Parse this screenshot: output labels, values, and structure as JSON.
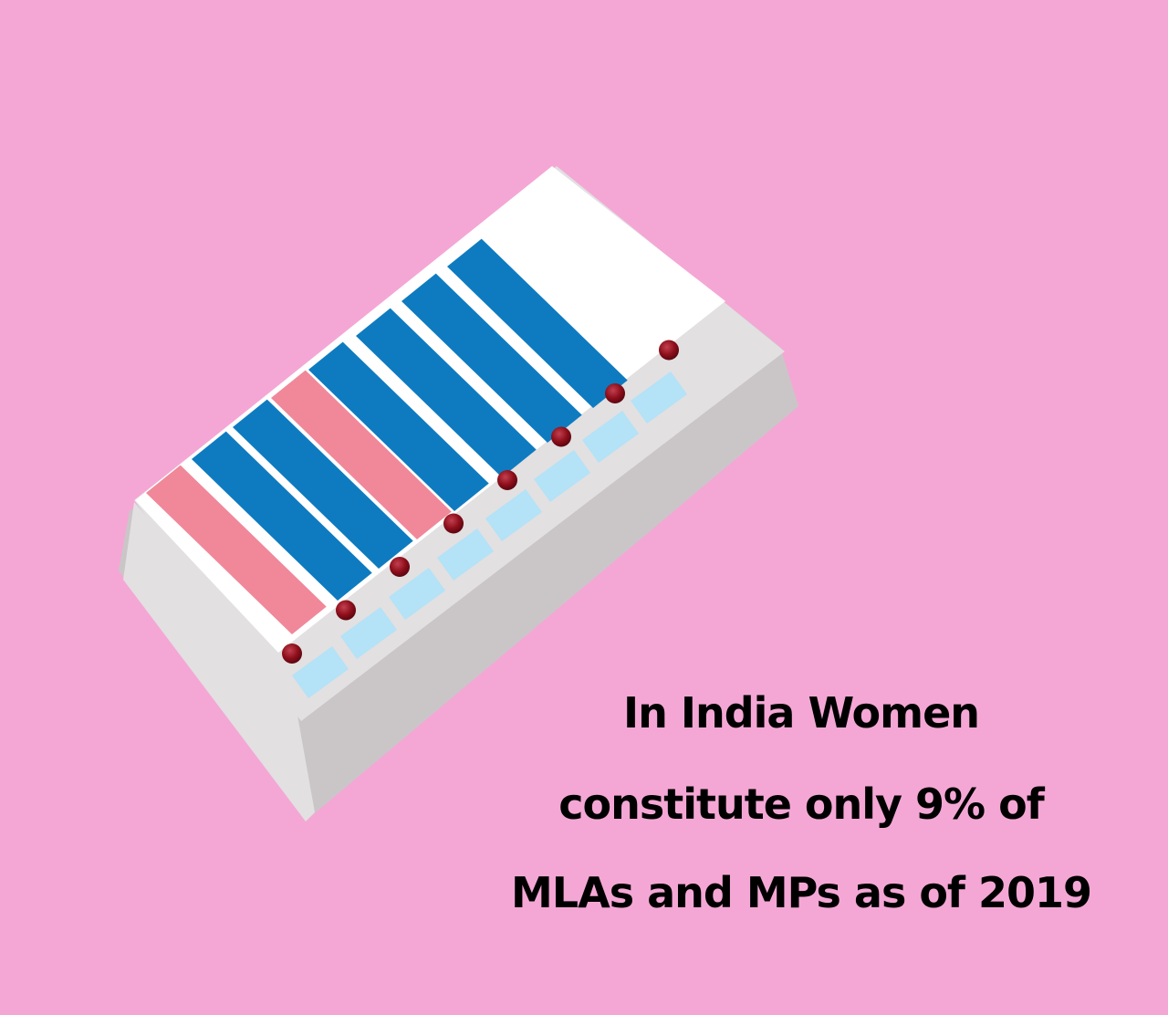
{
  "colors": {
    "background": "#f4a7d5",
    "machine_light": "#e2e0e1",
    "machine_shade": "#cac6c8",
    "panel": "#ffffff",
    "bar_women": "#f08899",
    "bar_men": "#0e7bc0",
    "button": "#b4e2f7",
    "indicator": "#8e0f1b",
    "text": "#000000"
  },
  "candidate_bars": [
    {
      "group": "women"
    },
    {
      "group": "men"
    },
    {
      "group": "men"
    },
    {
      "group": "women"
    },
    {
      "group": "men"
    },
    {
      "group": "men"
    },
    {
      "group": "men"
    },
    {
      "group": "men"
    }
  ],
  "caption": {
    "line1": "In India Women",
    "line2": "constitute only 9% of",
    "line3": "MLAs and MPs as of 2019"
  }
}
